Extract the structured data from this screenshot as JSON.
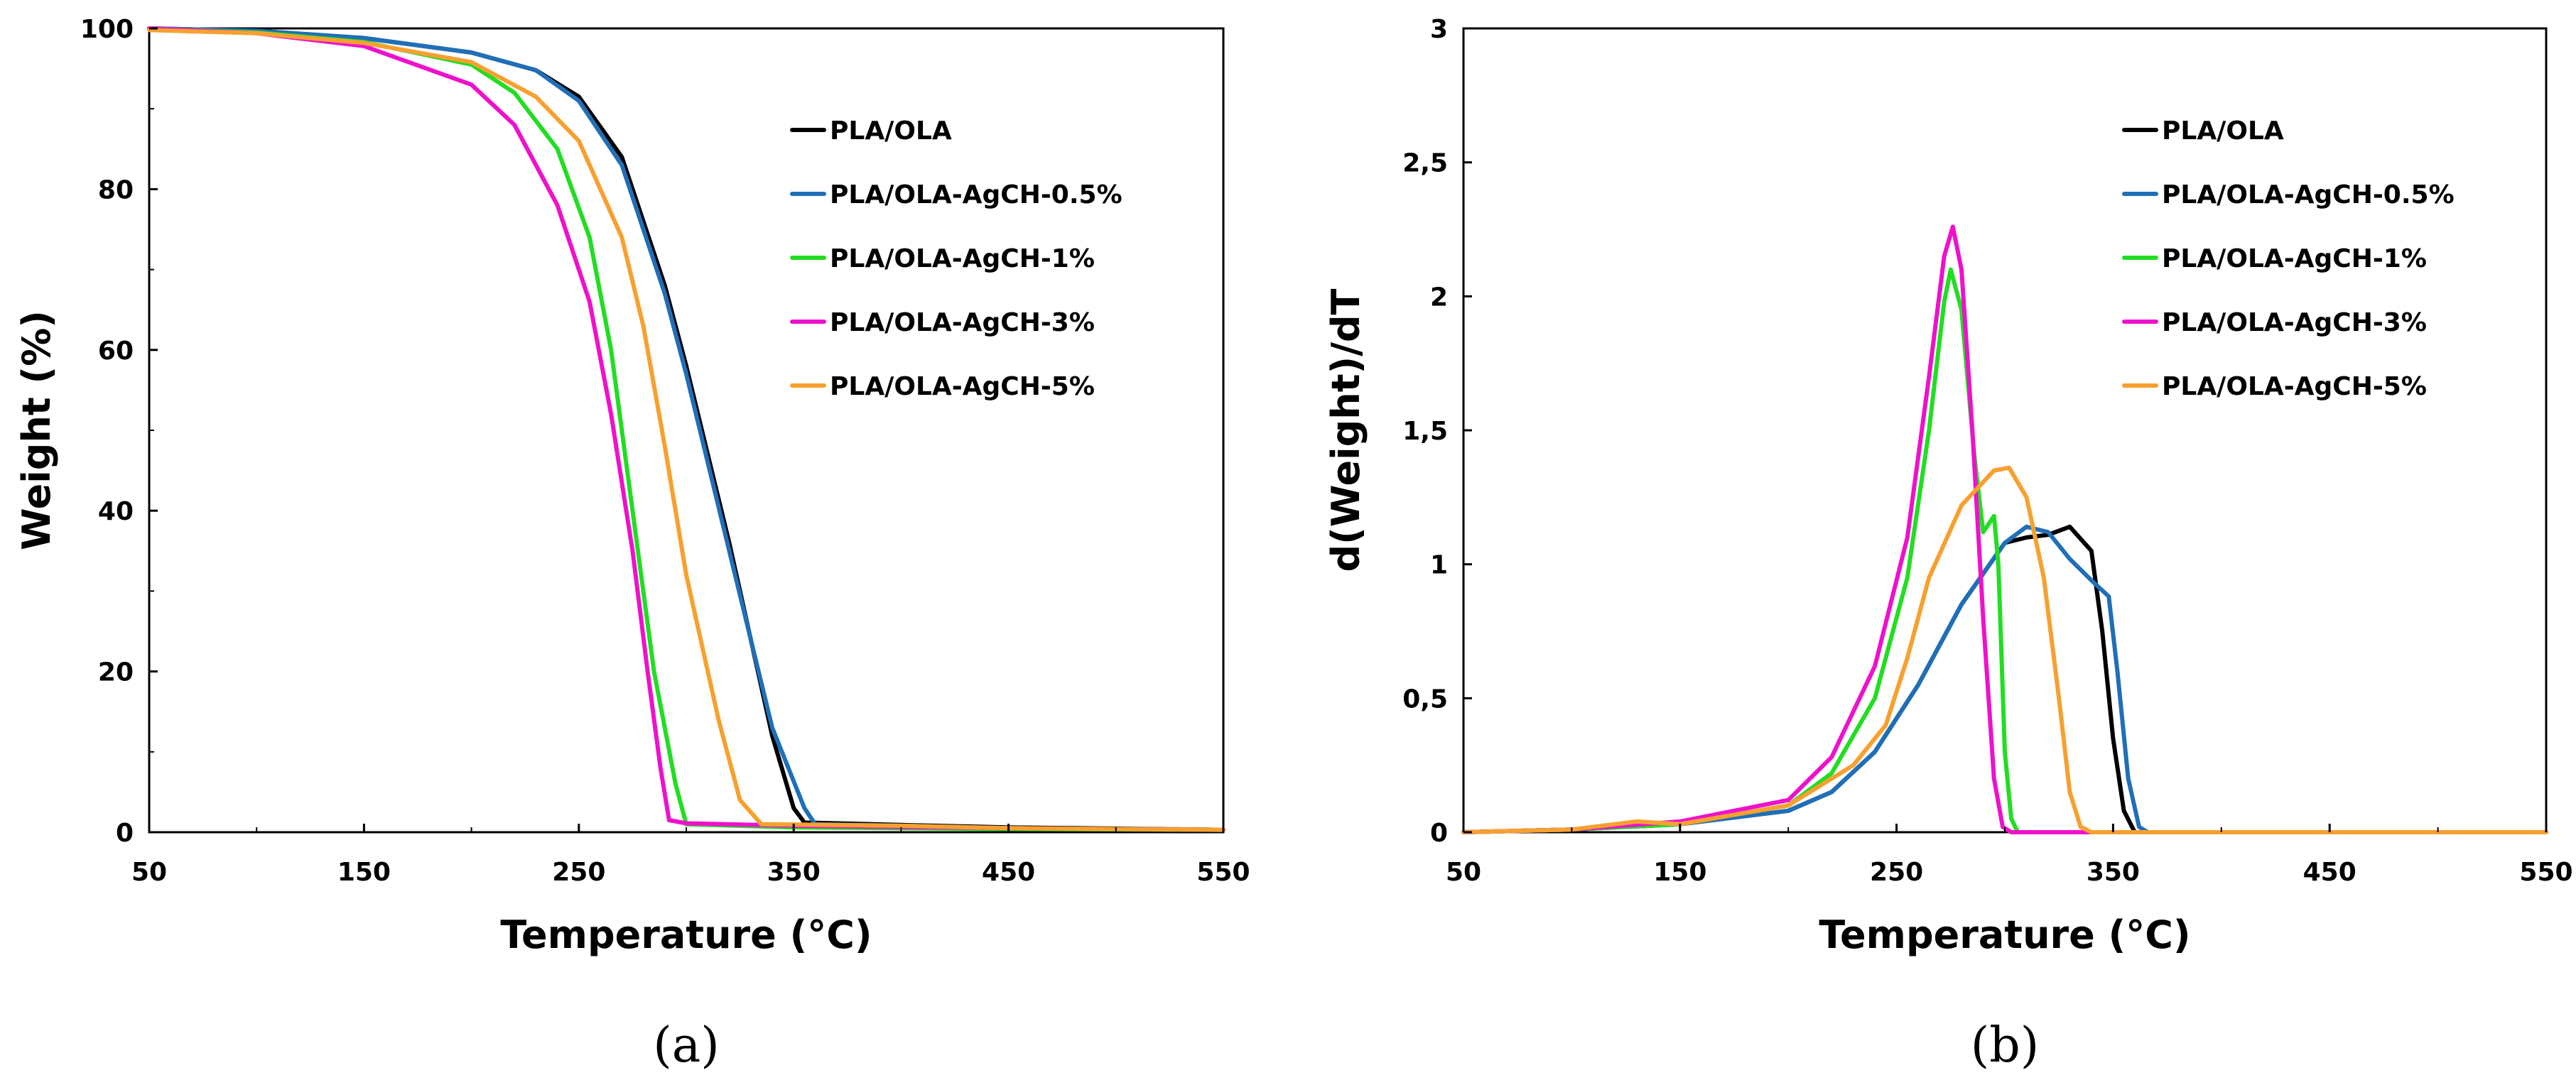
{
  "chart_data": [
    {
      "type": "line",
      "panel_label": "(a)",
      "xlabel": "Temperature (°C)",
      "ylabel": "Weight (%)",
      "xlim": [
        50,
        550
      ],
      "ylim": [
        0,
        100
      ],
      "xticks": [
        50,
        150,
        250,
        350,
        450,
        550
      ],
      "xtick_labels": [
        "50",
        "150",
        "250",
        "350",
        "450",
        "550"
      ],
      "yticks": [
        0,
        20,
        40,
        60,
        80,
        100
      ],
      "ytick_labels": [
        "0",
        "20",
        "40",
        "60",
        "80",
        "100"
      ],
      "legend_position": "top-right",
      "series": [
        {
          "name": "PLA/OLA",
          "color": "#000000",
          "points": [
            [
              50,
              100
            ],
            [
              100,
              99.7
            ],
            [
              150,
              98.8
            ],
            [
              200,
              97
            ],
            [
              230,
              94.8
            ],
            [
              250,
              91.5
            ],
            [
              270,
              84
            ],
            [
              290,
              68
            ],
            [
              300,
              58
            ],
            [
              320,
              36
            ],
            [
              340,
              12
            ],
            [
              350,
              3
            ],
            [
              355,
              1.2
            ],
            [
              400,
              0.9
            ],
            [
              450,
              0.6
            ],
            [
              550,
              0.3
            ]
          ]
        },
        {
          "name": "PLA/OLA-AgCH-0.5%",
          "color": "#1f6fb8",
          "points": [
            [
              50,
              100
            ],
            [
              100,
              99.7
            ],
            [
              150,
              98.8
            ],
            [
              200,
              97
            ],
            [
              230,
              94.8
            ],
            [
              250,
              91
            ],
            [
              270,
              83
            ],
            [
              290,
              67
            ],
            [
              300,
              57
            ],
            [
              320,
              35
            ],
            [
              340,
              13
            ],
            [
              355,
              3
            ],
            [
              360,
              1
            ],
            [
              400,
              0.8
            ],
            [
              450,
              0.5
            ],
            [
              550,
              0.3
            ]
          ]
        },
        {
          "name": "PLA/OLA-AgCH-1%",
          "color": "#22dd22",
          "points": [
            [
              50,
              100
            ],
            [
              100,
              99.5
            ],
            [
              150,
              98.3
            ],
            [
              200,
              95.5
            ],
            [
              220,
              92
            ],
            [
              240,
              85
            ],
            [
              255,
              74
            ],
            [
              265,
              60
            ],
            [
              275,
              40
            ],
            [
              285,
              20
            ],
            [
              295,
              6
            ],
            [
              300,
              1
            ],
            [
              350,
              0.6
            ],
            [
              450,
              0.4
            ],
            [
              550,
              0.3
            ]
          ]
        },
        {
          "name": "PLA/OLA-AgCH-3%",
          "color": "#ee11cc",
          "points": [
            [
              50,
              100
            ],
            [
              100,
              99.4
            ],
            [
              150,
              97.8
            ],
            [
              200,
              93
            ],
            [
              220,
              88
            ],
            [
              240,
              78
            ],
            [
              255,
              66
            ],
            [
              265,
              52
            ],
            [
              275,
              35
            ],
            [
              282,
              20
            ],
            [
              288,
              8
            ],
            [
              292,
              1.5
            ],
            [
              300,
              1.1
            ],
            [
              350,
              0.8
            ],
            [
              450,
              0.5
            ],
            [
              550,
              0.3
            ]
          ]
        },
        {
          "name": "PLA/OLA-AgCH-5%",
          "color": "#f7a030",
          "points": [
            [
              50,
              99.8
            ],
            [
              100,
              99.4
            ],
            [
              150,
              98.2
            ],
            [
              200,
              95.8
            ],
            [
              230,
              91.5
            ],
            [
              250,
              86
            ],
            [
              270,
              74
            ],
            [
              280,
              63
            ],
            [
              290,
              48
            ],
            [
              300,
              32
            ],
            [
              315,
              14
            ],
            [
              325,
              4
            ],
            [
              335,
              1
            ],
            [
              400,
              0.8
            ],
            [
              450,
              0.5
            ],
            [
              550,
              0.3
            ]
          ]
        }
      ]
    },
    {
      "type": "line",
      "panel_label": "(b)",
      "xlabel": "Temperature (°C)",
      "ylabel": "d(Weight)/dT",
      "xlim": [
        50,
        550
      ],
      "ylim": [
        0,
        3
      ],
      "xticks": [
        50,
        150,
        250,
        350,
        450,
        550
      ],
      "xtick_labels": [
        "50",
        "150",
        "250",
        "350",
        "450",
        "550"
      ],
      "yticks": [
        0,
        0.5,
        1,
        1.5,
        2,
        2.5,
        3
      ],
      "ytick_labels": [
        "0",
        "0,5",
        "1",
        "1,5",
        "2",
        "2,5",
        "3"
      ],
      "legend_position": "top-right",
      "series": [
        {
          "name": "PLA/OLA",
          "color": "#000000",
          "points": [
            [
              50,
              0
            ],
            [
              100,
              0.01
            ],
            [
              150,
              0.03
            ],
            [
              200,
              0.08
            ],
            [
              220,
              0.15
            ],
            [
              240,
              0.3
            ],
            [
              260,
              0.55
            ],
            [
              280,
              0.85
            ],
            [
              300,
              1.08
            ],
            [
              310,
              1.1
            ],
            [
              320,
              1.11
            ],
            [
              330,
              1.14
            ],
            [
              340,
              1.05
            ],
            [
              345,
              0.75
            ],
            [
              350,
              0.35
            ],
            [
              355,
              0.08
            ],
            [
              360,
              0
            ],
            [
              550,
              0
            ]
          ]
        },
        {
          "name": "PLA/OLA-AgCH-0.5%",
          "color": "#1f6fb8",
          "points": [
            [
              50,
              0
            ],
            [
              100,
              0.01
            ],
            [
              150,
              0.03
            ],
            [
              200,
              0.08
            ],
            [
              220,
              0.15
            ],
            [
              240,
              0.3
            ],
            [
              260,
              0.55
            ],
            [
              280,
              0.85
            ],
            [
              300,
              1.08
            ],
            [
              310,
              1.14
            ],
            [
              320,
              1.12
            ],
            [
              330,
              1.02
            ],
            [
              340,
              0.94
            ],
            [
              348,
              0.88
            ],
            [
              352,
              0.6
            ],
            [
              357,
              0.2
            ],
            [
              362,
              0.02
            ],
            [
              366,
              0
            ],
            [
              550,
              0
            ]
          ]
        },
        {
          "name": "PLA/OLA-AgCH-1%",
          "color": "#22dd22",
          "points": [
            [
              50,
              0
            ],
            [
              100,
              0.01
            ],
            [
              150,
              0.03
            ],
            [
              200,
              0.1
            ],
            [
              220,
              0.22
            ],
            [
              240,
              0.5
            ],
            [
              255,
              0.95
            ],
            [
              265,
              1.5
            ],
            [
              272,
              1.98
            ],
            [
              275,
              2.1
            ],
            [
              280,
              1.95
            ],
            [
              286,
              1.4
            ],
            [
              290,
              1.12
            ],
            [
              295,
              1.18
            ],
            [
              297,
              1.0
            ],
            [
              300,
              0.3
            ],
            [
              303,
              0.05
            ],
            [
              306,
              0
            ],
            [
              550,
              0
            ]
          ]
        },
        {
          "name": "PLA/OLA-AgCH-3%",
          "color": "#ee11cc",
          "points": [
            [
              50,
              0
            ],
            [
              100,
              0.01
            ],
            [
              150,
              0.04
            ],
            [
              200,
              0.12
            ],
            [
              220,
              0.28
            ],
            [
              240,
              0.62
            ],
            [
              255,
              1.1
            ],
            [
              265,
              1.7
            ],
            [
              272,
              2.15
            ],
            [
              276,
              2.26
            ],
            [
              280,
              2.1
            ],
            [
              285,
              1.5
            ],
            [
              290,
              0.8
            ],
            [
              295,
              0.2
            ],
            [
              299,
              0.02
            ],
            [
              303,
              0
            ],
            [
              550,
              0
            ]
          ]
        },
        {
          "name": "PLA/OLA-AgCH-5%",
          "color": "#f7a030",
          "points": [
            [
              50,
              0
            ],
            [
              100,
              0.01
            ],
            [
              130,
              0.04
            ],
            [
              150,
              0.03
            ],
            [
              200,
              0.1
            ],
            [
              230,
              0.25
            ],
            [
              245,
              0.4
            ],
            [
              255,
              0.65
            ],
            [
              265,
              0.95
            ],
            [
              280,
              1.22
            ],
            [
              295,
              1.35
            ],
            [
              302,
              1.36
            ],
            [
              310,
              1.25
            ],
            [
              318,
              0.95
            ],
            [
              325,
              0.5
            ],
            [
              330,
              0.15
            ],
            [
              335,
              0.02
            ],
            [
              340,
              0
            ],
            [
              550,
              0
            ]
          ]
        }
      ]
    }
  ]
}
